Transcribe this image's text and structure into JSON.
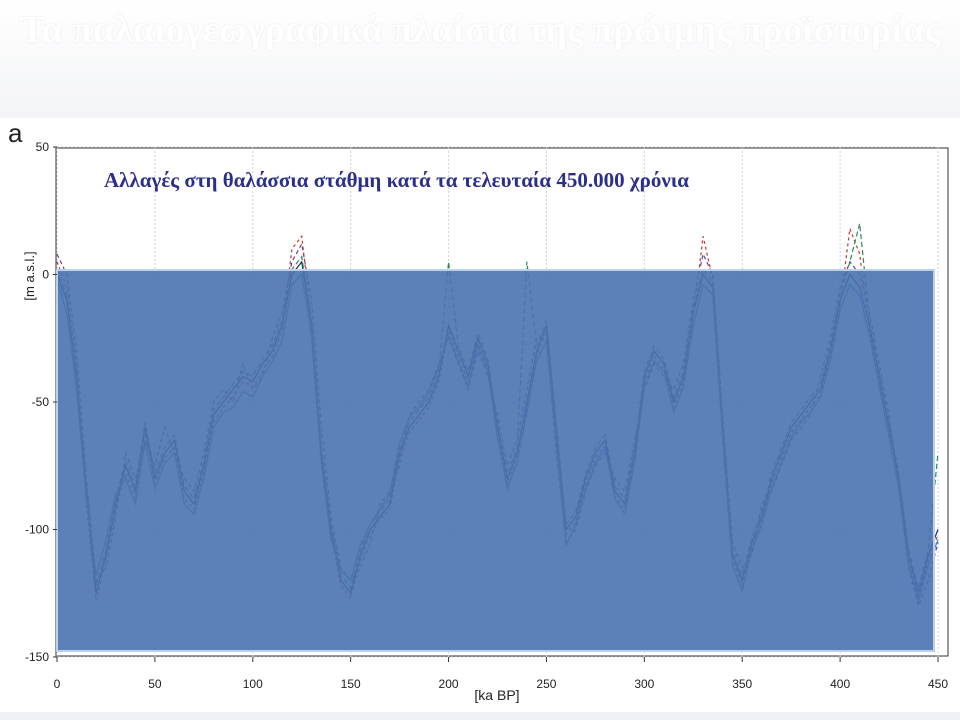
{
  "slide": {
    "title": "Τα παλαιογεωγραφικά πλαίσια της πρώιμης προϊστορίας",
    "panel_letter": "a"
  },
  "chart_data": {
    "type": "line",
    "title": "Αλλαγές στη θαλάσσια στάθμη κατά τα τελευταία  450.000 χρόνια",
    "xlabel": "[ka BP]",
    "ylabel": "[m a.s.l.]",
    "xlim": [
      0,
      450
    ],
    "ylim": [
      -150,
      50
    ],
    "xticks": [
      0,
      50,
      100,
      150,
      200,
      250,
      300,
      350,
      400,
      450
    ],
    "yticks": [
      50,
      0,
      -50,
      -100,
      -150
    ],
    "grid": true,
    "overlay_color": "#4a72b0",
    "series": [
      {
        "color": "#1f2a6e",
        "dash": "",
        "x": [
          0,
          5,
          10,
          15,
          20,
          25,
          30,
          35,
          40,
          45,
          50,
          55,
          60,
          65,
          70,
          75,
          80,
          85,
          90,
          95,
          100,
          105,
          110,
          115,
          120,
          125,
          130,
          135,
          140,
          145,
          150,
          155,
          160,
          165,
          170,
          175,
          180,
          185,
          190,
          195,
          200,
          205,
          210,
          215,
          220,
          225,
          230,
          235,
          240,
          245,
          250,
          255,
          260,
          265,
          270,
          275,
          280,
          285,
          290,
          295,
          300,
          305,
          310,
          315,
          320,
          325,
          330,
          335,
          340,
          345,
          350,
          355,
          360,
          365,
          370,
          375,
          380,
          385,
          390,
          395,
          400,
          405,
          410,
          415,
          420,
          425,
          430,
          435,
          440,
          445,
          450
        ],
        "values": [
          0,
          -10,
          -40,
          -85,
          -125,
          -110,
          -90,
          -75,
          -85,
          -60,
          -80,
          -70,
          -65,
          -85,
          -90,
          -75,
          -55,
          -50,
          -45,
          -40,
          -42,
          -35,
          -30,
          -20,
          0,
          5,
          -20,
          -70,
          -100,
          -120,
          -125,
          -110,
          -100,
          -95,
          -90,
          -70,
          -60,
          -55,
          -50,
          -40,
          -20,
          -30,
          -40,
          -25,
          -35,
          -60,
          -80,
          -70,
          -50,
          -30,
          -20,
          -60,
          -100,
          -95,
          -80,
          -70,
          -65,
          -85,
          -90,
          -70,
          -40,
          -30,
          -35,
          -50,
          -40,
          -15,
          0,
          -5,
          -60,
          -110,
          -120,
          -105,
          -95,
          -80,
          -70,
          -60,
          -55,
          -50,
          -45,
          -30,
          -10,
          0,
          -5,
          -20,
          -40,
          -60,
          -80,
          -110,
          -125,
          -110,
          -100
        ]
      },
      {
        "color": "#6a3fa0",
        "dash": "4,3",
        "x": [
          0,
          5,
          10,
          15,
          20,
          25,
          30,
          35,
          40,
          45,
          50,
          55,
          60,
          65,
          70,
          75,
          80,
          85,
          90,
          95,
          100,
          105,
          110,
          115,
          120,
          125,
          130,
          135,
          140,
          145,
          150,
          155,
          160,
          165,
          170,
          175,
          180,
          185,
          190,
          195,
          200,
          205,
          210,
          215,
          220,
          225,
          230,
          235,
          240,
          245,
          250,
          255,
          260,
          265,
          270,
          275,
          280,
          285,
          290,
          295,
          300,
          305,
          310,
          315,
          320,
          325,
          330,
          335,
          340,
          345,
          350,
          355,
          360,
          365,
          370,
          375,
          380,
          385,
          390,
          395,
          400,
          405,
          410,
          415,
          420,
          425,
          430,
          435,
          440,
          445,
          450
        ],
        "values": [
          8,
          0,
          -30,
          -80,
          -120,
          -115,
          -95,
          -70,
          -80,
          -65,
          -75,
          -60,
          -70,
          -80,
          -85,
          -70,
          -50,
          -45,
          -50,
          -35,
          -45,
          -40,
          -25,
          -15,
          5,
          12,
          -10,
          -60,
          -95,
          -115,
          -120,
          -115,
          -105,
          -90,
          -85,
          -75,
          -55,
          -50,
          -45,
          -35,
          -25,
          -35,
          -45,
          -30,
          -40,
          -55,
          -75,
          -65,
          -45,
          -25,
          -25,
          -70,
          -105,
          -100,
          -85,
          -75,
          -70,
          -80,
          -85,
          -65,
          -45,
          -35,
          -40,
          -45,
          -35,
          -10,
          8,
          0,
          -55,
          -105,
          -115,
          -110,
          -90,
          -85,
          -75,
          -65,
          -60,
          -55,
          -40,
          -25,
          -5,
          5,
          0,
          -15,
          -35,
          -55,
          -85,
          -115,
          -130,
          -120,
          -105
        ]
      },
      {
        "color": "#c0392b",
        "dash": "3,3",
        "x": [
          0,
          5,
          10,
          15,
          20,
          25,
          30,
          35,
          40,
          45,
          50,
          55,
          60,
          65,
          70,
          75,
          80,
          85,
          90,
          95,
          100,
          105,
          110,
          115,
          120,
          125,
          130,
          135,
          140,
          145,
          150,
          155,
          160,
          165,
          170,
          175,
          180,
          185,
          190,
          195,
          200,
          205,
          210,
          215,
          220,
          225,
          230,
          235,
          240,
          245,
          250,
          255,
          260,
          265,
          270,
          275,
          280,
          285,
          290,
          295,
          300,
          305,
          310,
          315,
          320,
          325,
          330,
          335,
          340,
          345,
          350,
          355,
          360,
          365,
          370,
          375,
          380,
          385,
          390,
          395,
          400,
          405,
          410,
          415,
          420,
          425,
          430,
          435,
          440,
          445,
          450
        ],
        "values": [
          5,
          -5,
          -35,
          -90,
          -128,
          -112,
          -92,
          -78,
          -88,
          -62,
          -82,
          -72,
          -68,
          -88,
          -92,
          -78,
          -58,
          -52,
          -48,
          -42,
          -44,
          -38,
          -32,
          -22,
          10,
          15,
          -18,
          -72,
          -102,
          -122,
          -127,
          -112,
          -102,
          -96,
          -92,
          -72,
          -62,
          -57,
          -52,
          -42,
          -22,
          -32,
          -42,
          -27,
          -37,
          -62,
          -82,
          -72,
          -52,
          -32,
          -22,
          -62,
          -102,
          -97,
          -82,
          -72,
          -67,
          -87,
          -92,
          -72,
          -42,
          -32,
          -37,
          -52,
          -42,
          -17,
          15,
          -2,
          -62,
          -112,
          -122,
          -107,
          -97,
          -82,
          -72,
          -62,
          -57,
          -52,
          -47,
          -32,
          -12,
          18,
          8,
          -22,
          -42,
          -62,
          -82,
          -112,
          -127,
          -112,
          -102
        ]
      },
      {
        "color": "#2e8b57",
        "dash": "5,3",
        "x": [
          0,
          5,
          10,
          15,
          20,
          25,
          30,
          35,
          40,
          45,
          50,
          55,
          60,
          65,
          70,
          75,
          80,
          85,
          90,
          95,
          100,
          105,
          110,
          115,
          120,
          125,
          130,
          135,
          140,
          145,
          150,
          155,
          160,
          165,
          170,
          175,
          180,
          185,
          190,
          195,
          200,
          205,
          210,
          215,
          220,
          225,
          230,
          235,
          240,
          245,
          250,
          255,
          260,
          265,
          270,
          275,
          280,
          285,
          290,
          295,
          300,
          305,
          310,
          315,
          320,
          325,
          330,
          335,
          340,
          345,
          350,
          355,
          360,
          365,
          370,
          375,
          380,
          385,
          390,
          395,
          400,
          405,
          410,
          415,
          420,
          425,
          430,
          435,
          440,
          445,
          450
        ],
        "values": [
          2,
          -8,
          -38,
          -82,
          -122,
          -108,
          -88,
          -73,
          -83,
          -58,
          -78,
          -68,
          -63,
          -83,
          -88,
          -73,
          -53,
          -48,
          -43,
          -38,
          -40,
          -33,
          -28,
          -18,
          2,
          7,
          -18,
          -68,
          -98,
          -118,
          -123,
          -108,
          -98,
          -93,
          -88,
          -68,
          -58,
          -53,
          -48,
          -38,
          5,
          -28,
          -38,
          -23,
          -33,
          -58,
          -78,
          -68,
          5,
          -28,
          -18,
          -58,
          -98,
          -93,
          -78,
          -68,
          -63,
          -83,
          -88,
          -68,
          -38,
          -28,
          -33,
          -48,
          -38,
          -13,
          2,
          -3,
          -58,
          -108,
          -118,
          -103,
          -93,
          -78,
          -68,
          -58,
          -53,
          -48,
          -43,
          -28,
          -8,
          5,
          20,
          -18,
          -38,
          -58,
          -78,
          -108,
          -123,
          -108,
          -70
        ]
      },
      {
        "color": "#3a7fbf",
        "dash": "",
        "x": [
          0,
          5,
          10,
          15,
          20,
          25,
          30,
          35,
          40,
          45,
          50,
          55,
          60,
          65,
          70,
          75,
          80,
          85,
          90,
          95,
          100,
          105,
          110,
          115,
          120,
          125,
          130,
          135,
          140,
          145,
          150,
          155,
          160,
          165,
          170,
          175,
          180,
          185,
          190,
          195,
          200,
          205,
          210,
          215,
          220,
          225,
          230,
          235,
          240,
          245,
          250,
          255,
          260,
          265,
          270,
          275,
          280,
          285,
          290,
          295,
          300,
          305,
          310,
          315,
          320,
          325,
          330,
          335,
          340,
          345,
          350,
          355,
          360,
          365,
          370,
          375,
          380,
          385,
          390,
          395,
          400,
          405,
          410,
          415,
          420,
          425,
          430,
          435,
          440,
          445,
          450
        ],
        "values": [
          -2,
          -15,
          -45,
          -88,
          -118,
          -104,
          -86,
          -80,
          -90,
          -66,
          -84,
          -74,
          -70,
          -90,
          -94,
          -80,
          -60,
          -54,
          -52,
          -46,
          -48,
          -40,
          -34,
          -26,
          -4,
          0,
          -24,
          -74,
          -104,
          -116,
          -120,
          -106,
          -98,
          -92,
          -86,
          -66,
          -56,
          -52,
          -46,
          -36,
          -24,
          -34,
          -44,
          -28,
          -38,
          -64,
          -84,
          -74,
          -54,
          -34,
          -26,
          -66,
          -106,
          -98,
          -84,
          -74,
          -68,
          -88,
          -94,
          -74,
          -44,
          -34,
          -38,
          -54,
          -44,
          -20,
          -4,
          -8,
          -64,
          -114,
          -124,
          -108,
          -98,
          -84,
          -74,
          -64,
          -58,
          -54,
          -48,
          -34,
          -14,
          -4,
          -8,
          -24,
          -44,
          -64,
          -84,
          -114,
          -128,
          -114,
          -104
        ]
      }
    ]
  }
}
